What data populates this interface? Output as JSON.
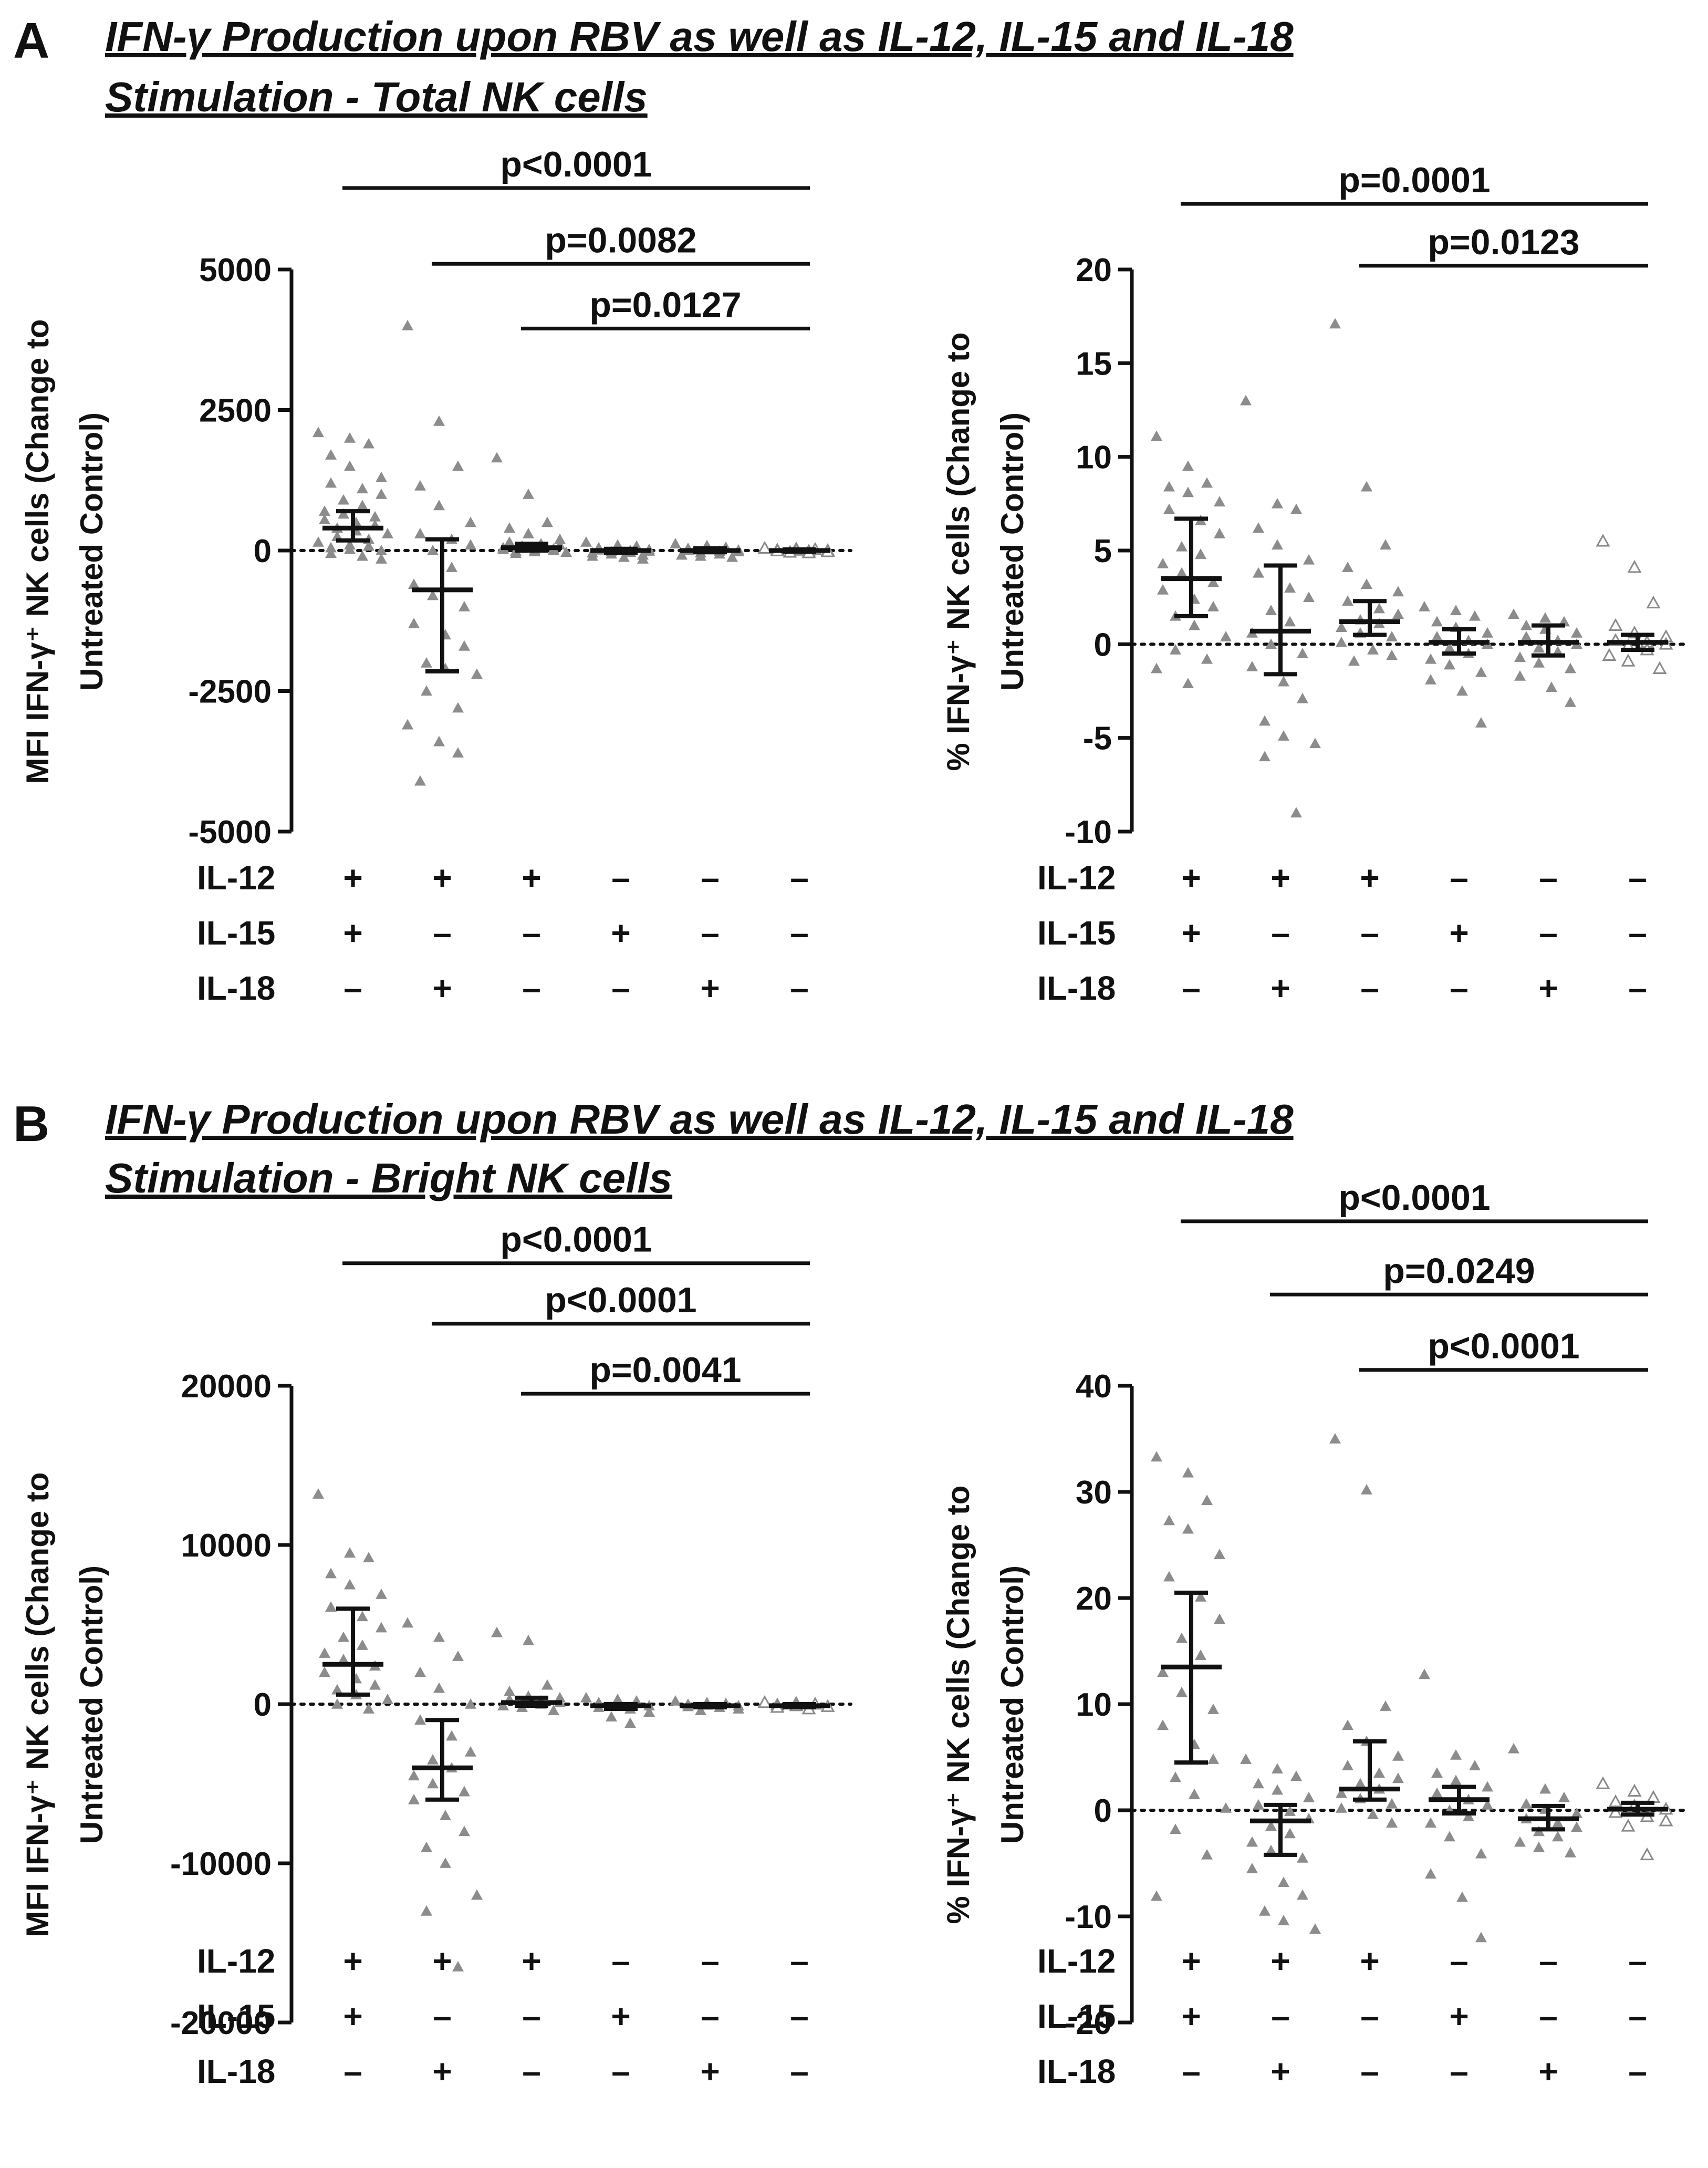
{
  "panels": [
    {
      "letter": "A",
      "title_line1": "IFN-γ Production upon RBV as well as IL-12, IL-15 and IL-18",
      "title_line2": "Stimulation - Total NK cells"
    },
    {
      "letter": "B",
      "title_line1": "IFN-γ Production upon RBV as well as IL-12, IL-15 and IL-18",
      "title_line2": "Stimulation - Bright NK cells"
    }
  ],
  "conditions": {
    "rows": [
      "IL-12",
      "IL-15",
      "IL-18"
    ],
    "signs": [
      [
        "+",
        "+",
        "+",
        "–",
        "–",
        "–"
      ],
      [
        "+",
        "–",
        "–",
        "+",
        "–",
        "–"
      ],
      [
        "–",
        "+",
        "–",
        "–",
        "+",
        "–"
      ]
    ]
  },
  "chart_data": [
    {
      "type": "scatter",
      "panel": "A",
      "ylabel_line1": "MFI IFN-γ⁺ NK cells (Change to",
      "ylabel_line2": "Untreated Control)",
      "ylim": [
        -5000,
        5000
      ],
      "yticks": [
        5000,
        2500,
        0,
        -2500,
        -5000
      ],
      "ytick_labels": [
        "5000",
        "2500",
        "0",
        "-2500",
        "-5000"
      ],
      "reference_line": 0,
      "groups": [
        {
          "median": 400,
          "q1": 180,
          "q3": 700,
          "values": [
            2100,
            2000,
            1900,
            1700,
            1500,
            1300,
            1200,
            1100,
            1000,
            900,
            800,
            700,
            650,
            600,
            550,
            500,
            450,
            400,
            350,
            300,
            250,
            200,
            150,
            100,
            80,
            50,
            20,
            0,
            -50,
            -100,
            -150
          ]
        },
        {
          "median": -700,
          "q1": -2150,
          "q3": 200,
          "values": [
            4000,
            2300,
            1500,
            1150,
            800,
            500,
            300,
            200,
            100,
            0,
            -300,
            -600,
            -800,
            -1000,
            -1300,
            -1500,
            -1700,
            -2000,
            -2100,
            -2200,
            -2500,
            -2800,
            -3100,
            -3400,
            -3600,
            -4100
          ]
        },
        {
          "median": 50,
          "q1": 0,
          "q3": 120,
          "values": [
            1650,
            1000,
            500,
            400,
            300,
            200,
            150,
            120,
            100,
            80,
            60,
            50,
            40,
            30,
            20,
            10,
            0,
            -10,
            -20,
            -30,
            -50
          ]
        },
        {
          "median": 0,
          "q1": -40,
          "q3": 30,
          "values": [
            150,
            100,
            80,
            50,
            30,
            20,
            10,
            0,
            -10,
            -20,
            -30,
            -40,
            -60,
            -80,
            -100,
            -120,
            -150
          ]
        },
        {
          "median": 0,
          "q1": -30,
          "q3": 40,
          "values": [
            120,
            90,
            60,
            40,
            20,
            10,
            0,
            -10,
            -20,
            -40,
            -60,
            -80,
            -100,
            -120
          ]
        },
        {
          "median": 0,
          "q1": -20,
          "q3": 20,
          "values": [
            40,
            30,
            20,
            10,
            5,
            0,
            -5,
            -10,
            -20,
            -30,
            -40
          ],
          "hollow": true
        }
      ],
      "significance": [
        {
          "label": "p<0.0001",
          "from": 0,
          "to": 5,
          "y": 6450
        },
        {
          "label": "p=0.0082",
          "from": 1,
          "to": 5,
          "y": 5100
        },
        {
          "label": "p=0.0127",
          "from": 2,
          "to": 5,
          "y": 3950
        }
      ]
    },
    {
      "type": "scatter",
      "panel": "A",
      "ylabel_line1": "% IFN-γ⁺ NK cells (Change to",
      "ylabel_line2": "Untreated Control)",
      "ylim": [
        -10,
        20
      ],
      "yticks": [
        20,
        15,
        10,
        5,
        0,
        -5,
        -10
      ],
      "ytick_labels": [
        "20",
        "15",
        "10",
        "5",
        "0",
        "-5",
        "-10"
      ],
      "reference_line": 0,
      "groups": [
        {
          "median": 3.5,
          "q1": 1.5,
          "q3": 6.7,
          "values": [
            11.1,
            9.5,
            8.6,
            8.4,
            8.1,
            7.6,
            7.2,
            6.6,
            5.9,
            5.2,
            4.8,
            4.3,
            3.8,
            3.3,
            2.9,
            2.4,
            2.0,
            1.5,
            1.0,
            0.4,
            -0.3,
            -0.8,
            -1.3,
            -2.1
          ]
        },
        {
          "median": 0.7,
          "q1": -1.6,
          "q3": 4.2,
          "values": [
            13.0,
            7.5,
            7.2,
            6.2,
            5.3,
            4.5,
            3.8,
            3.0,
            2.5,
            1.8,
            1.2,
            0.6,
            0.0,
            -0.5,
            -1.2,
            -2.0,
            -2.9,
            -4.1,
            -4.9,
            -5.3,
            -6.0,
            -9.0
          ]
        },
        {
          "median": 1.2,
          "q1": 0.5,
          "q3": 2.3,
          "values": [
            17.1,
            8.4,
            5.3,
            4.1,
            3.2,
            2.8,
            2.3,
            1.9,
            1.6,
            1.3,
            1.1,
            0.9,
            0.6,
            0.4,
            0.1,
            -0.3,
            -0.6,
            -0.9
          ]
        },
        {
          "median": 0.1,
          "q1": -0.5,
          "q3": 0.8,
          "values": [
            2.0,
            1.8,
            1.5,
            1.2,
            0.9,
            0.6,
            0.4,
            0.2,
            0.0,
            -0.2,
            -0.5,
            -0.8,
            -1.1,
            -1.5,
            -1.9,
            -2.5,
            -4.2
          ]
        },
        {
          "median": 0.1,
          "q1": -0.6,
          "q3": 1.0,
          "values": [
            1.6,
            1.4,
            1.2,
            1.0,
            0.8,
            0.6,
            0.4,
            0.2,
            0.0,
            -0.2,
            -0.4,
            -0.7,
            -1.0,
            -1.3,
            -1.7,
            -2.3,
            -3.1
          ]
        },
        {
          "median": 0.1,
          "q1": -0.3,
          "q3": 0.5,
          "values": [
            5.5,
            4.1,
            2.2,
            1.0,
            0.6,
            0.4,
            0.2,
            0.1,
            0.0,
            -0.1,
            -0.3,
            -0.6,
            -0.9,
            -1.3
          ],
          "hollow": true
        }
      ],
      "significance": [
        {
          "label": "p=0.0001",
          "from": 0,
          "to": 5,
          "y": 23.5
        },
        {
          "label": "p=0.0123",
          "from": 2,
          "to": 5,
          "y": 20.2
        }
      ]
    },
    {
      "type": "scatter",
      "panel": "B",
      "ylabel_line1": "MFI IFN-γ⁺ NK cells (Change to",
      "ylabel_line2": "Untreated Control)",
      "ylim": [
        -20000,
        20000
      ],
      "yticks": [
        20000,
        10000,
        0,
        -10000,
        -20000
      ],
      "ytick_labels": [
        "20000",
        "10000",
        "0",
        "-10000",
        "-20000"
      ],
      "reference_line": 0,
      "groups": [
        {
          "median": 2500,
          "q1": 600,
          "q3": 6000,
          "values": [
            13200,
            9500,
            9200,
            8200,
            7500,
            6900,
            6100,
            5500,
            4800,
            4200,
            3700,
            3200,
            2800,
            2400,
            2000,
            1600,
            1200,
            900,
            600,
            300,
            0,
            -300
          ]
        },
        {
          "median": -4000,
          "q1": -6000,
          "q3": -1000,
          "values": [
            5100,
            4200,
            3000,
            2000,
            1000,
            0,
            -1000,
            -2000,
            -3000,
            -3500,
            -4000,
            -4500,
            -5000,
            -5500,
            -6000,
            -7000,
            -8000,
            -9000,
            -10000,
            -12000,
            -13000,
            -16500
          ]
        },
        {
          "median": 100,
          "q1": -100,
          "q3": 400,
          "values": [
            4500,
            4000,
            1200,
            800,
            500,
            400,
            300,
            200,
            100,
            50,
            0,
            -100,
            -200,
            -400
          ]
        },
        {
          "median": -100,
          "q1": -300,
          "q3": 0,
          "values": [
            400,
            300,
            200,
            100,
            0,
            -100,
            -200,
            -300,
            -500,
            -800,
            -1200
          ]
        },
        {
          "median": -100,
          "q1": -200,
          "q3": 0,
          "values": [
            200,
            100,
            50,
            0,
            -50,
            -100,
            -150,
            -200,
            -300,
            -400
          ]
        },
        {
          "median": -100,
          "q1": -200,
          "q3": 0,
          "values": [
            100,
            50,
            0,
            -50,
            -100,
            -150,
            -200,
            -300
          ],
          "hollow": true
        }
      ],
      "significance": [
        {
          "label": "p<0.0001",
          "from": 0,
          "to": 5,
          "y": 27700
        },
        {
          "label": "p<0.0001",
          "from": 1,
          "to": 5,
          "y": 23900
        },
        {
          "label": "p=0.0041",
          "from": 2,
          "to": 5,
          "y": 19500
        }
      ]
    },
    {
      "type": "scatter",
      "panel": "B",
      "ylabel_line1": "% IFN-γ⁺ NK cells (Change to",
      "ylabel_line2": "Untreated Control)",
      "ylim": [
        -20,
        40
      ],
      "yticks": [
        40,
        30,
        20,
        10,
        0,
        -10,
        -20
      ],
      "ytick_labels": [
        "40",
        "30",
        "20",
        "10",
        "0",
        "-10",
        "-20"
      ],
      "reference_line": 0,
      "groups": [
        {
          "median": 13.5,
          "q1": 4.5,
          "q3": 20.5,
          "values": [
            33.3,
            31.8,
            29.2,
            27.3,
            26.5,
            24.1,
            22.0,
            20.1,
            18.0,
            16.2,
            14.6,
            13.0,
            11.1,
            9.5,
            8.0,
            6.2,
            4.8,
            3.1,
            1.5,
            0.2,
            -1.8,
            -4.2,
            -8.1
          ]
        },
        {
          "median": -1.0,
          "q1": -4.2,
          "q3": 0.5,
          "values": [
            4.8,
            3.9,
            3.2,
            2.5,
            1.9,
            1.2,
            0.5,
            -0.1,
            -0.8,
            -1.5,
            -2.2,
            -3.0,
            -3.8,
            -4.5,
            -5.5,
            -6.8,
            -8.0,
            -9.5,
            -10.4,
            -11.2
          ]
        },
        {
          "median": 2.0,
          "q1": 1.0,
          "q3": 6.5,
          "values": [
            35.0,
            30.2,
            9.8,
            8.0,
            6.5,
            5.1,
            4.2,
            3.5,
            3.0,
            2.5,
            2.0,
            1.6,
            1.1,
            0.6,
            0.2,
            -0.4,
            -1.2
          ]
        },
        {
          "median": 1.0,
          "q1": -0.3,
          "q3": 2.2,
          "values": [
            12.8,
            5.2,
            4.2,
            3.5,
            2.8,
            2.2,
            1.6,
            1.0,
            0.5,
            0.0,
            -0.6,
            -1.2,
            -2.5,
            -4.1,
            -6.0,
            -8.2,
            -12.0
          ]
        },
        {
          "median": -0.8,
          "q1": -1.8,
          "q3": 0.4,
          "values": [
            5.8,
            2.0,
            1.2,
            0.6,
            0.1,
            -0.3,
            -0.8,
            -1.2,
            -1.6,
            -2.0,
            -2.5,
            -3.0,
            -3.5,
            -4.0
          ]
        },
        {
          "median": 0.1,
          "q1": -0.4,
          "q3": 0.7,
          "values": [
            2.5,
            1.8,
            1.2,
            0.8,
            0.4,
            0.1,
            -0.2,
            -0.6,
            -1.0,
            -1.5,
            -4.2
          ],
          "hollow": true
        }
      ],
      "significance": [
        {
          "label": "p<0.0001",
          "from": 0,
          "to": 5,
          "y": 55.5
        },
        {
          "label": "p=0.0249",
          "from": 1,
          "to": 5,
          "y": 48.6
        },
        {
          "label": "p<0.0001",
          "from": 2,
          "to": 5,
          "y": 41.5
        }
      ]
    }
  ]
}
